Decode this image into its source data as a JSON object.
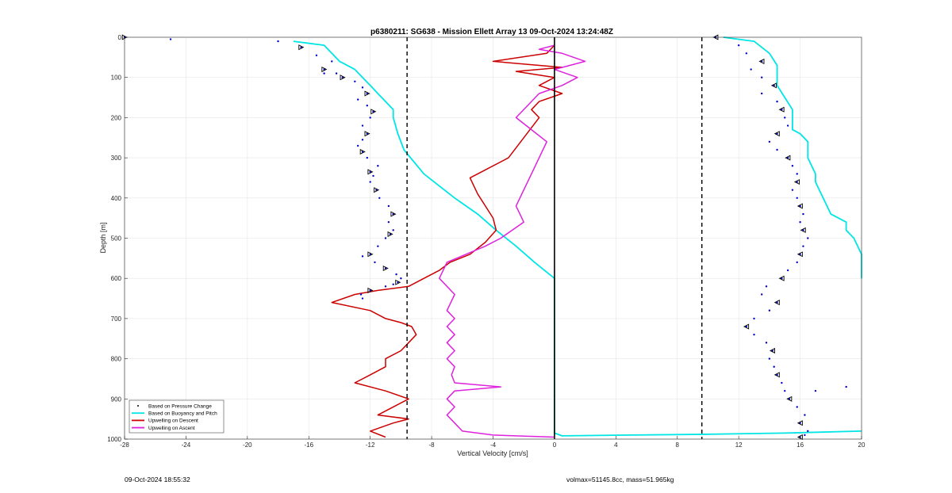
{
  "chart_data": {
    "type": "line",
    "title": "p6380211: SG638 - Mission Ellett Array 13 09-Oct-2024 13:24:48Z",
    "xlabel": "Vertical Velocity [cm/s]",
    "ylabel": "Depth [m]",
    "xlim": [
      -28,
      20
    ],
    "ylim": [
      0,
      1000
    ],
    "y_reversed": true,
    "xticks": [
      -28,
      -24,
      -20,
      -16,
      -12,
      -8,
      -4,
      0,
      4,
      8,
      12,
      16,
      20
    ],
    "yticks": [
      0,
      100,
      200,
      300,
      400,
      500,
      600,
      700,
      800,
      900,
      1000
    ],
    "grid": true,
    "legend_position": "bottom-left",
    "reference_lines": [
      {
        "x": -9.6,
        "style": "dashed",
        "color": "#000000"
      },
      {
        "x": 0,
        "style": "solid",
        "color": "#000000"
      },
      {
        "x": 9.6,
        "style": "dashed",
        "color": "#000000"
      }
    ],
    "series": [
      {
        "name": "Based on Pressure Change",
        "color": "#0000cc",
        "style": "points",
        "descent_x": [
          -28,
          -25,
          -18,
          -16.5,
          -15.5,
          -14.5,
          -15,
          -15,
          -14.2,
          -13.8,
          -13,
          -12.5,
          -12.2,
          -12.8,
          -12.2,
          -11.8,
          -12,
          -12.5,
          -12.2,
          -12.5,
          -12.8,
          -12.5,
          -12.2,
          -11.5,
          -12,
          -11.8,
          -12,
          -11.6,
          -11.4,
          -10.8,
          -10.5,
          -10.8,
          -10.5,
          -10.7,
          -11,
          -11.5,
          -12,
          -12.5,
          -11.7,
          -11,
          -10.3,
          -10,
          -10.2,
          -10.5,
          -11,
          -12,
          -12.6,
          -12.5
        ],
        "descent_y": [
          0,
          5,
          10,
          25,
          45,
          60,
          80,
          90,
          90,
          100,
          110,
          125,
          140,
          155,
          170,
          185,
          200,
          220,
          240,
          255,
          270,
          285,
          300,
          320,
          335,
          345,
          360,
          380,
          400,
          420,
          440,
          460,
          480,
          490,
          500,
          520,
          540,
          545,
          560,
          575,
          590,
          600,
          610,
          615,
          620,
          630,
          640,
          650
        ],
        "ascent_x": [
          10.5,
          12,
          12.5,
          13.5,
          12.8,
          13.5,
          14.3,
          13.5,
          14.5,
          14.8,
          15,
          15.2,
          14.5,
          14,
          14.5,
          15.2,
          15.5,
          15.8,
          15.8,
          15.5,
          15.8,
          16,
          16.2,
          16,
          16.2,
          16.5,
          16.2,
          16,
          15.8,
          15.2,
          14.8,
          13.8,
          13.5,
          14.5,
          14,
          13,
          12.5,
          13,
          13.8,
          14.2,
          14,
          14.3,
          14.5,
          14.8,
          15,
          15.3,
          15.8,
          16.3,
          16,
          16.5,
          16.3,
          16,
          19,
          17
        ],
        "ascent_y": [
          0,
          20,
          40,
          60,
          80,
          100,
          120,
          140,
          160,
          180,
          200,
          220,
          240,
          260,
          280,
          300,
          320,
          340,
          360,
          380,
          400,
          420,
          440,
          460,
          480,
          500,
          520,
          540,
          560,
          580,
          600,
          620,
          640,
          660,
          680,
          700,
          720,
          740,
          760,
          780,
          800,
          820,
          840,
          860,
          880,
          900,
          920,
          940,
          960,
          980,
          990,
          995,
          870,
          880
        ]
      },
      {
        "name": "Based on Buoyancy and Pitch",
        "color": "#00e5e5",
        "style": "line",
        "x": [
          -17,
          -15,
          -14.5,
          -14,
          -13,
          -12.5,
          -12,
          -11.5,
          -11,
          -10.5,
          -10.5,
          -10.2,
          -9.8,
          -8.5,
          -6.5,
          -5,
          -3.8,
          -2.5,
          -1.3,
          0,
          0,
          0,
          0.5,
          5,
          10,
          15,
          20
        ],
        "y": [
          10,
          20,
          40,
          60,
          80,
          100,
          120,
          140,
          160,
          180,
          200,
          240,
          280,
          340,
          400,
          440,
          480,
          520,
          560,
          600,
          630,
          985,
          992,
          990,
          988,
          985,
          980
        ],
        "ascent_x": [
          11,
          13,
          14,
          14.5,
          14.5,
          14.5,
          15,
          15.5,
          15.5,
          15.5,
          16,
          16.5,
          16.5,
          17,
          17,
          17.5,
          18,
          19,
          19,
          19.5,
          20,
          20
        ],
        "ascent_y": [
          0,
          10,
          40,
          70,
          100,
          120,
          150,
          180,
          200,
          230,
          240,
          260,
          300,
          340,
          360,
          400,
          440,
          460,
          480,
          500,
          540,
          600
        ]
      },
      {
        "name": "Upwelling on Descent",
        "color": "#cc0000",
        "style": "line",
        "x": [
          0,
          -0.5,
          -4,
          0.5,
          -2.5,
          0,
          -1,
          0.5,
          -1,
          -1.5,
          -1,
          -2,
          -3,
          -4.5,
          -5.5,
          -5,
          -4.5,
          -4,
          -3.8,
          -4.5,
          -5.5,
          -6.8,
          -7.5,
          -8.5,
          -9.5,
          -11.5,
          -13,
          -14.5,
          -12,
          -11,
          -10,
          -9.3,
          -9,
          -9.5,
          -10,
          -11,
          -11,
          -12,
          -13,
          -11,
          -9.5,
          -10.5,
          -11.5,
          -9.5,
          -10.5,
          -12,
          -11
        ],
        "y": [
          20,
          40,
          60,
          75,
          85,
          100,
          120,
          140,
          160,
          180,
          200,
          250,
          300,
          330,
          350,
          390,
          420,
          450,
          480,
          510,
          540,
          560,
          580,
          600,
          620,
          630,
          640,
          660,
          680,
          700,
          710,
          720,
          740,
          760,
          780,
          800,
          820,
          840,
          860,
          880,
          900,
          920,
          940,
          950,
          960,
          980,
          995
        ]
      },
      {
        "name": "Upwelling on Ascent",
        "color": "#dd22dd",
        "style": "line",
        "x": [
          0,
          -1,
          0.5,
          2,
          0,
          1.5,
          0.5,
          -1,
          -1.5,
          -2.5,
          -1.5,
          -0.5,
          -1,
          -1.5,
          -2,
          -2.5,
          -2,
          -3.5,
          -4.5,
          -7,
          -7.5,
          -6.5,
          -7,
          -6.5,
          -7,
          -6.5,
          -7,
          -6.5,
          -7,
          -6.5,
          -6.7,
          -6.5,
          -3.5,
          -6.5,
          -7,
          -6.5,
          -7,
          -6.5,
          -6,
          -4,
          0
        ],
        "y": [
          20,
          30,
          40,
          60,
          80,
          100,
          120,
          140,
          160,
          200,
          230,
          260,
          300,
          340,
          380,
          420,
          460,
          500,
          520,
          560,
          600,
          640,
          680,
          700,
          720,
          740,
          760,
          780,
          800,
          820,
          840,
          860,
          870,
          880,
          900,
          920,
          940,
          960,
          980,
          990,
          995
        ]
      }
    ]
  },
  "legend": {
    "items": [
      {
        "label": "Based on Pressure Change",
        "color": "#000000",
        "style": "marker"
      },
      {
        "label": "Based on Buoyancy and Pitch",
        "color": "#00e5e5",
        "style": "line"
      },
      {
        "label": "Upwelling on Descent",
        "color": "#cc0000",
        "style": "line"
      },
      {
        "label": "Upwelling on Ascent",
        "color": "#dd22dd",
        "style": "line"
      }
    ]
  },
  "footer": {
    "left": "09-Oct-2024 18:55:32",
    "right": "volmax=51145.8cc, mass=51.965kg"
  }
}
